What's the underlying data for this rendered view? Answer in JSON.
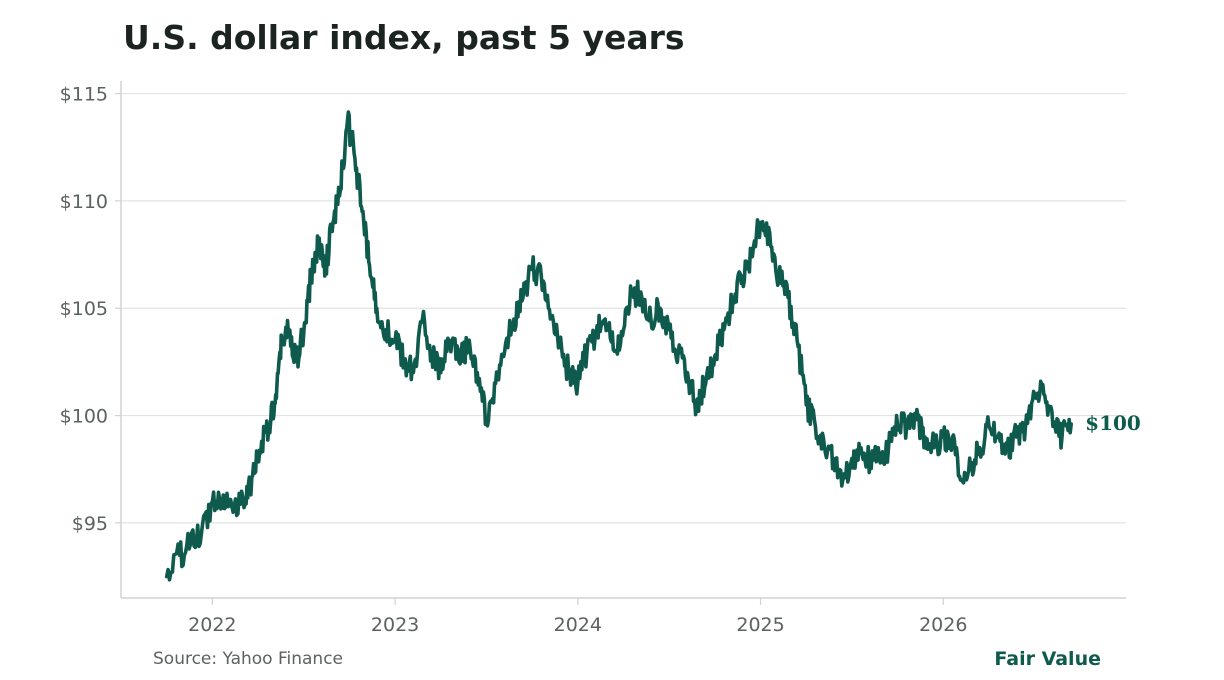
{
  "title": "U.S. dollar index, past 5 years",
  "source": "Source: Yahoo Finance",
  "brand": "Fair Value",
  "colors": {
    "line": "#0e5a4c",
    "grid": "#e3e3e3",
    "axis": "#cfd3d1",
    "text": "#5b625f"
  },
  "chart_data": {
    "type": "line",
    "title": "U.S. dollar index, past 5 years",
    "xlabel": "",
    "ylabel": "",
    "x_ticks": [
      2022,
      2023,
      2024,
      2025,
      2026
    ],
    "y_ticks": [
      95,
      100,
      105,
      110,
      115
    ],
    "y_tick_labels": [
      "$95",
      "$100",
      "$105",
      "$110",
      "$115"
    ],
    "xlim": [
      2021.5,
      2027.0
    ],
    "ylim": [
      91.5,
      115.4
    ],
    "grid": "horizontal",
    "end_label": "$100",
    "series": [
      {
        "name": "",
        "x": [
          2021.75,
          2021.82,
          2021.88,
          2021.94,
          2022.0,
          2022.06,
          2022.12,
          2022.18,
          2022.22,
          2022.27,
          2022.32,
          2022.35,
          2022.38,
          2022.42,
          2022.46,
          2022.5,
          2022.54,
          2022.58,
          2022.62,
          2022.66,
          2022.7,
          2022.74,
          2022.78,
          2022.82,
          2022.86,
          2022.9,
          2022.95,
          2023.0,
          2023.05,
          2023.1,
          2023.15,
          2023.2,
          2023.25,
          2023.3,
          2023.35,
          2023.4,
          2023.45,
          2023.5,
          2023.55,
          2023.6,
          2023.65,
          2023.7,
          2023.75,
          2023.8,
          2023.85,
          2023.9,
          2023.95,
          2024.0,
          2024.05,
          2024.1,
          2024.15,
          2024.2,
          2024.25,
          2024.3,
          2024.35,
          2024.4,
          2024.45,
          2024.5,
          2024.55,
          2024.6,
          2024.65,
          2024.7,
          2024.75,
          2024.8,
          2024.85,
          2024.9,
          2024.95,
          2025.0,
          2025.05,
          2025.1,
          2025.15,
          2025.2,
          2025.25,
          2025.3,
          2025.35,
          2025.4,
          2025.45,
          2025.5,
          2025.55,
          2025.6,
          2025.65,
          2025.7,
          2025.75,
          2025.8,
          2025.85,
          2025.9,
          2025.95,
          2026.0,
          2026.05,
          2026.1,
          2026.15,
          2026.2,
          2026.25,
          2026.3,
          2026.35,
          2026.4,
          2026.45,
          2026.5,
          2026.55,
          2026.6,
          2026.65,
          2026.7
        ],
        "y": [
          92.5,
          93.5,
          94.0,
          94.5,
          96.0,
          96.3,
          95.8,
          96.0,
          97.2,
          98.8,
          99.8,
          100.8,
          103.5,
          104.0,
          102.5,
          103.8,
          106.5,
          108.0,
          107.0,
          109.0,
          110.5,
          113.8,
          112.0,
          109.5,
          107.0,
          105.0,
          104.0,
          103.5,
          102.5,
          102.0,
          104.5,
          103.0,
          102.0,
          103.5,
          102.5,
          103.2,
          102.0,
          99.8,
          101.5,
          103.0,
          104.5,
          105.5,
          106.8,
          106.5,
          104.5,
          103.5,
          102.0,
          101.5,
          103.0,
          103.8,
          104.5,
          103.0,
          104.0,
          105.8,
          105.5,
          104.5,
          105.0,
          104.0,
          103.0,
          102.0,
          100.5,
          101.5,
          102.8,
          104.0,
          105.5,
          106.5,
          107.5,
          109.0,
          108.5,
          106.5,
          105.5,
          103.5,
          100.5,
          99.5,
          98.5,
          98.0,
          97.0,
          98.0,
          98.5,
          97.8,
          98.0,
          98.5,
          99.5,
          99.5,
          99.8,
          99.0,
          98.5,
          99.0,
          99.0,
          97.0,
          97.5,
          98.5,
          99.5,
          99.0,
          98.5,
          99.0,
          99.5,
          101.0,
          101.0,
          99.5,
          99.0,
          99.6
        ]
      }
    ]
  }
}
